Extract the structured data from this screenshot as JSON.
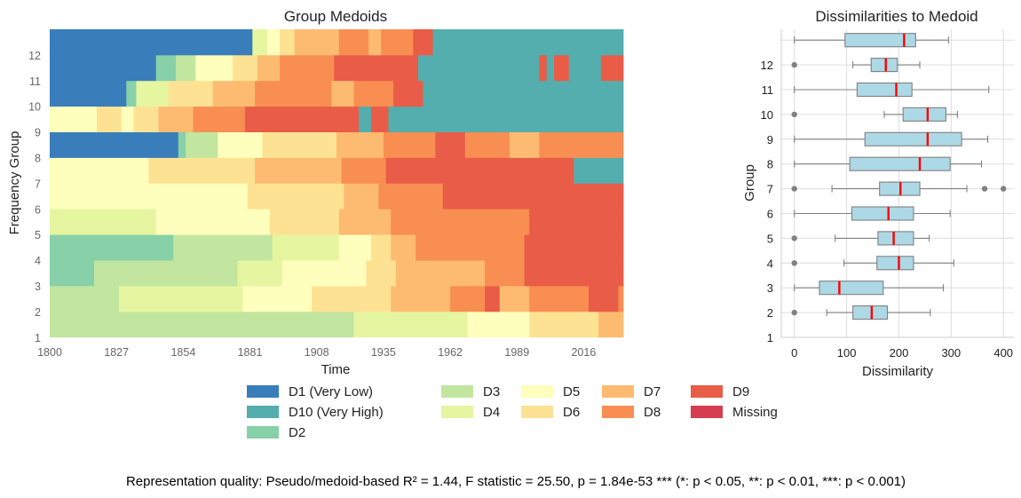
{
  "chart_data": [
    {
      "type": "sequence index plot",
      "title": "Group Medoids",
      "xlabel": "Time",
      "ylabel": "Frequency Group",
      "xlim": [
        1800,
        2032
      ],
      "x_ticks": [
        "1800",
        "1827",
        "1854",
        "1881",
        "1908",
        "1935",
        "1962",
        "1989",
        "2016"
      ],
      "y_ticks": [
        "1",
        "2",
        "3",
        "4",
        "5",
        "6",
        "7",
        "8",
        "9",
        "10",
        "11",
        "12"
      ],
      "state_colors": {
        "D1 (Very Low)": "#3a7dbb",
        "D2": "#88d0a8",
        "D3": "#c2e6a0",
        "D4": "#e6f5a0",
        "D5": "#fefebd",
        "D6": "#fee293",
        "D7": "#fdbb71",
        "D8": "#f98e52",
        "D9": "#e95c47",
        "D10 (Very High)": "#54aead",
        "Missing": "#d53e4f"
      },
      "rows": [
        {
          "group": "1",
          "segments": [
            [
              1800,
              1923,
              "D3"
            ],
            [
              1923,
              1969,
              "D4"
            ],
            [
              1969,
              1994,
              "D5"
            ],
            [
              1994,
              2022,
              "D6"
            ],
            [
              2022,
              2032,
              "D7"
            ]
          ]
        },
        {
          "group": "2",
          "segments": [
            [
              1800,
              1828,
              "D3"
            ],
            [
              1828,
              1878,
              "D4"
            ],
            [
              1878,
              1906,
              "D5"
            ],
            [
              1906,
              1938,
              "D6"
            ],
            [
              1938,
              1962,
              "D7"
            ],
            [
              1962,
              1976,
              "D8"
            ],
            [
              1976,
              1982,
              "D9"
            ],
            [
              1982,
              1994,
              "D7"
            ],
            [
              1994,
              2018,
              "D8"
            ],
            [
              2018,
              2030,
              "D9"
            ],
            [
              2030,
              2032,
              "D8"
            ]
          ]
        },
        {
          "group": "3",
          "segments": [
            [
              1800,
              1818,
              "D2"
            ],
            [
              1818,
              1876,
              "D3"
            ],
            [
              1876,
              1894,
              "D4"
            ],
            [
              1894,
              1928,
              "D5"
            ],
            [
              1928,
              1940,
              "D6"
            ],
            [
              1940,
              1976,
              "D7"
            ],
            [
              1976,
              1992,
              "D8"
            ],
            [
              1992,
              2032,
              "D9"
            ]
          ]
        },
        {
          "group": "4",
          "segments": [
            [
              1800,
              1850,
              "D2"
            ],
            [
              1850,
              1890,
              "D3"
            ],
            [
              1890,
              1917,
              "D4"
            ],
            [
              1917,
              1930,
              "D5"
            ],
            [
              1930,
              1938,
              "D6"
            ],
            [
              1938,
              1948,
              "D7"
            ],
            [
              1948,
              1962,
              "D8"
            ],
            [
              1962,
              1976,
              "D8"
            ],
            [
              1976,
              1992,
              "D8"
            ],
            [
              1992,
              2032,
              "D9"
            ]
          ]
        },
        {
          "group": "5",
          "segments": [
            [
              1800,
              1843,
              "D4"
            ],
            [
              1843,
              1889,
              "D5"
            ],
            [
              1889,
              1917,
              "D6"
            ],
            [
              1917,
              1938,
              "D7"
            ],
            [
              1938,
              1959,
              "D8"
            ],
            [
              1959,
              1994,
              "D8"
            ],
            [
              1994,
              2032,
              "D9"
            ]
          ]
        },
        {
          "group": "6",
          "segments": [
            [
              1800,
              1880,
              "D5"
            ],
            [
              1880,
              1919,
              "D6"
            ],
            [
              1919,
              1933,
              "D7"
            ],
            [
              1933,
              1959,
              "D8"
            ],
            [
              1959,
              2032,
              "D9"
            ]
          ]
        },
        {
          "group": "7",
          "segments": [
            [
              1800,
              1840,
              "D5"
            ],
            [
              1840,
              1883,
              "D6"
            ],
            [
              1883,
              1918,
              "D7"
            ],
            [
              1918,
              1936,
              "D8"
            ],
            [
              1936,
              2012,
              "D9"
            ],
            [
              2012,
              2032,
              "D10 (Very High)"
            ]
          ]
        },
        {
          "group": "8",
          "segments": [
            [
              1800,
              1852,
              "D1 (Very Low)"
            ],
            [
              1852,
              1855,
              "D2"
            ],
            [
              1855,
              1868,
              "D3"
            ],
            [
              1868,
              1886,
              "D5"
            ],
            [
              1886,
              1916,
              "D6"
            ],
            [
              1916,
              1935,
              "D7"
            ],
            [
              1935,
              1956,
              "D8"
            ],
            [
              1956,
              1968,
              "D9"
            ],
            [
              1968,
              1986,
              "D8"
            ],
            [
              1986,
              1998,
              "D7"
            ],
            [
              1998,
              2032,
              "D8"
            ]
          ]
        },
        {
          "group": "9",
          "segments": [
            [
              1800,
              1819,
              "D5"
            ],
            [
              1819,
              1829,
              "D6"
            ],
            [
              1829,
              1834,
              "D5"
            ],
            [
              1834,
              1844,
              "D6"
            ],
            [
              1844,
              1858,
              "D7"
            ],
            [
              1858,
              1879,
              "D8"
            ],
            [
              1879,
              1904,
              "D9"
            ],
            [
              1904,
              1916,
              "D9"
            ],
            [
              1916,
              1925,
              "D9"
            ],
            [
              1925,
              1930,
              "D10 (Very High)"
            ],
            [
              1930,
              1937,
              "D9"
            ],
            [
              1937,
              2032,
              "D10 (Very High)"
            ]
          ]
        },
        {
          "group": "10",
          "segments": [
            [
              1800,
              1831,
              "D1 (Very Low)"
            ],
            [
              1831,
              1835,
              "D2"
            ],
            [
              1835,
              1848,
              "D4"
            ],
            [
              1848,
              1866,
              "D6"
            ],
            [
              1866,
              1883,
              "D7"
            ],
            [
              1883,
              1914,
              "D8"
            ],
            [
              1914,
              1923,
              "D7"
            ],
            [
              1923,
              1939,
              "D8"
            ],
            [
              1939,
              1951,
              "D9"
            ],
            [
              1951,
              2032,
              "D10 (Very High)"
            ]
          ]
        },
        {
          "group": "11",
          "segments": [
            [
              1800,
              1843,
              "D1 (Very Low)"
            ],
            [
              1843,
              1851,
              "D2"
            ],
            [
              1851,
              1859,
              "D3"
            ],
            [
              1859,
              1874,
              "D5"
            ],
            [
              1874,
              1884,
              "D6"
            ],
            [
              1884,
              1893,
              "D7"
            ],
            [
              1893,
              1915,
              "D8"
            ],
            [
              1915,
              1929,
              "D9"
            ],
            [
              1929,
              1949,
              "D9"
            ],
            [
              1949,
              1998,
              "D10 (Very High)"
            ],
            [
              1998,
              2001,
              "D9"
            ],
            [
              2001,
              2004,
              "D10 (Very High)"
            ],
            [
              2004,
              2010,
              "D9"
            ],
            [
              2010,
              2023,
              "D10 (Very High)"
            ],
            [
              2023,
              2032,
              "D9"
            ]
          ]
        },
        {
          "group": "12",
          "segments": [
            [
              1800,
              1882,
              "D1 (Very Low)"
            ],
            [
              1882,
              1888,
              "D4"
            ],
            [
              1888,
              1893,
              "D5"
            ],
            [
              1893,
              1899,
              "D6"
            ],
            [
              1899,
              1917,
              "D7"
            ],
            [
              1917,
              1929,
              "D8"
            ],
            [
              1929,
              1934,
              "D7"
            ],
            [
              1934,
              1947,
              "D8"
            ],
            [
              1947,
              1955,
              "D9"
            ],
            [
              1955,
              2032,
              "D10 (Very High)"
            ]
          ]
        }
      ]
    },
    {
      "type": "boxplot",
      "orientation": "horizontal",
      "title": "Dissimilarities to Medoid",
      "xlabel": "Dissimilarity",
      "ylabel": "Group",
      "xlim": [
        -25,
        420
      ],
      "x_ticks": [
        "0",
        "100",
        "200",
        "300",
        "400"
      ],
      "y_ticks": [
        "1",
        "2",
        "3",
        "4",
        "5",
        "6",
        "7",
        "8",
        "9",
        "10",
        "11",
        "12"
      ],
      "box_color": "#add8e6",
      "median_color": "#ff0000",
      "boxes": [
        {
          "group": "1",
          "whislo": 62,
          "q1": 112,
          "median": 148,
          "q3": 178,
          "whishi": 260,
          "fliers": [
            0
          ]
        },
        {
          "group": "2",
          "whislo": 0,
          "q1": 48,
          "median": 86,
          "q3": 170,
          "whishi": 285,
          "fliers": []
        },
        {
          "group": "3",
          "whislo": 95,
          "q1": 158,
          "median": 200,
          "q3": 228,
          "whishi": 305,
          "fliers": [
            0
          ]
        },
        {
          "group": "4",
          "whislo": 78,
          "q1": 160,
          "median": 190,
          "q3": 228,
          "whishi": 258,
          "fliers": [
            0
          ]
        },
        {
          "group": "5",
          "whislo": 0,
          "q1": 110,
          "median": 180,
          "q3": 228,
          "whishi": 298,
          "fliers": []
        },
        {
          "group": "6",
          "whislo": 72,
          "q1": 163,
          "median": 203,
          "q3": 240,
          "whishi": 330,
          "fliers": [
            0,
            364,
            400
          ]
        },
        {
          "group": "7",
          "whislo": 0,
          "q1": 106,
          "median": 240,
          "q3": 298,
          "whishi": 358,
          "fliers": []
        },
        {
          "group": "8",
          "whislo": 0,
          "q1": 135,
          "median": 255,
          "q3": 320,
          "whishi": 370,
          "fliers": []
        },
        {
          "group": "9",
          "whislo": 172,
          "q1": 208,
          "median": 255,
          "q3": 290,
          "whishi": 312,
          "fliers": [
            0
          ]
        },
        {
          "group": "10",
          "whislo": 0,
          "q1": 120,
          "median": 195,
          "q3": 225,
          "whishi": 372,
          "fliers": []
        },
        {
          "group": "11",
          "whislo": 112,
          "q1": 147,
          "median": 175,
          "q3": 197,
          "whishi": 240,
          "fliers": [
            0
          ]
        },
        {
          "group": "12",
          "whislo": 0,
          "q1": 97,
          "median": 210,
          "q3": 232,
          "whishi": 295,
          "fliers": []
        }
      ]
    }
  ],
  "legend": [
    {
      "label": "D1 (Very Low)",
      "color": "#3a7dbb"
    },
    {
      "label": "D10 (Very High)",
      "color": "#54aead"
    },
    {
      "label": "D2",
      "color": "#88d0a8"
    },
    {
      "label": "D3",
      "color": "#c2e6a0"
    },
    {
      "label": "D4",
      "color": "#e6f5a0"
    },
    {
      "label": "D5",
      "color": "#fefebd"
    },
    {
      "label": "D6",
      "color": "#fee293"
    },
    {
      "label": "D7",
      "color": "#fdbb71"
    },
    {
      "label": "D8",
      "color": "#f98e52"
    },
    {
      "label": "D9",
      "color": "#e95c47"
    },
    {
      "label": "Missing",
      "color": "#d53e4f"
    }
  ],
  "footnote": "Representation quality: Pseudo/medoid-based R² = 1.44, F statistic = 25.50, p = 1.84e-53 *** (*: p < 0.05, **: p < 0.01, ***: p < 0.001)"
}
